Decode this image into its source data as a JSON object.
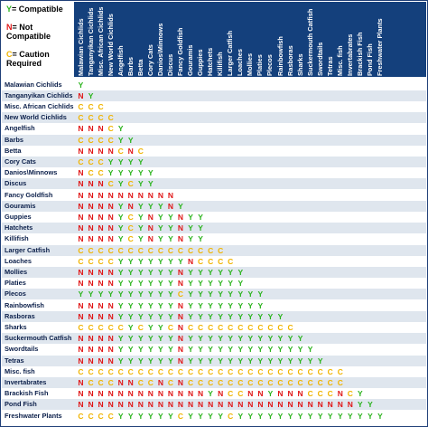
{
  "legend": [
    {
      "symbol": "Y",
      "text": "= Compatible",
      "color": "#2ab31c"
    },
    {
      "symbol": "N",
      "text": "= Not Compatible",
      "color": "#e01616"
    },
    {
      "symbol": "C",
      "text": "= Caution Required",
      "color": "#f0b400"
    }
  ],
  "colors": {
    "header_background": "#14407c",
    "row_band_light": "#ffffff",
    "row_band_shaded": "#dfe6ee",
    "compatible": "#2ab31c",
    "not_compatible": "#e01616",
    "caution": "#f0b400"
  },
  "fish_groups": [
    "Malawian Cichlids",
    "Tanganyikan Cichlids",
    "Misc. African Cichlids",
    "New World Cichlids",
    "Angelfish",
    "Barbs",
    "Betta",
    "Cory Cats",
    "Danios\\Minnows",
    "Discus",
    "Fancy Goldfish",
    "Gouramis",
    "Guppies",
    "Hatchets",
    "Killifish",
    "Larger Catfish",
    "Loaches",
    "Mollies",
    "Platies",
    "Plecos",
    "Rainbowfish",
    "Rasboras",
    "Sharks",
    "Suckermouth Catfish",
    "Swordtails",
    "Tetras",
    "Misc. fish",
    "Invertabrates",
    "Brackish Fish",
    "Pond Fish",
    "Freshwater Plants"
  ],
  "matrix": [
    "Y",
    "NY",
    "CCC",
    "CCCC",
    "NNNCY",
    "CCCCYY",
    "NNNNCNC",
    "CCCYYYY",
    "NCCYYYYY",
    "NNNCYCYY",
    "NNNNNNNNNN",
    "NNNNYNYYYNY",
    "NNNNYCYNYYNYY",
    "NNNNYCYNYYNYY",
    "NNNNYCYNYYNYY",
    "CCCCCCCCCCCCCCC",
    "CCCCYYYYYYYNCCCC",
    "NNNNYYYYYYNYYYYYY",
    "NNNNYYYYYYNYYYYYY",
    "YYYYYYYYYYCYYYYYYYY",
    "NNNNYYYYYYNYYYYYYYY",
    "NNNNYYYYYYNYYYYYYYYYY",
    "CCCCCYCYYCNCCCCCCCCCCC",
    "NNNNYYYYYYNYYYYYYYYYYYY",
    "NNNNYYYYYYNYYYYYYYYYYYYY",
    "NNNNYYYYYYNYYYYYYYYYYYYYY",
    "CCCCCCCCCCCCCCCCCCCCCCCCCCC",
    "NCCCNNCCNCNCCCCCCCCCCCCCCCC",
    "NNNNNNNNNNNNNYNCCNNYNNNCCCNCY",
    "NNNNNNNNNNNNNNNNNNNNNNNNNNNNYY",
    "CCCCYYYYYYCYYYYCYYYYYYYYYYYYYYY"
  ]
}
